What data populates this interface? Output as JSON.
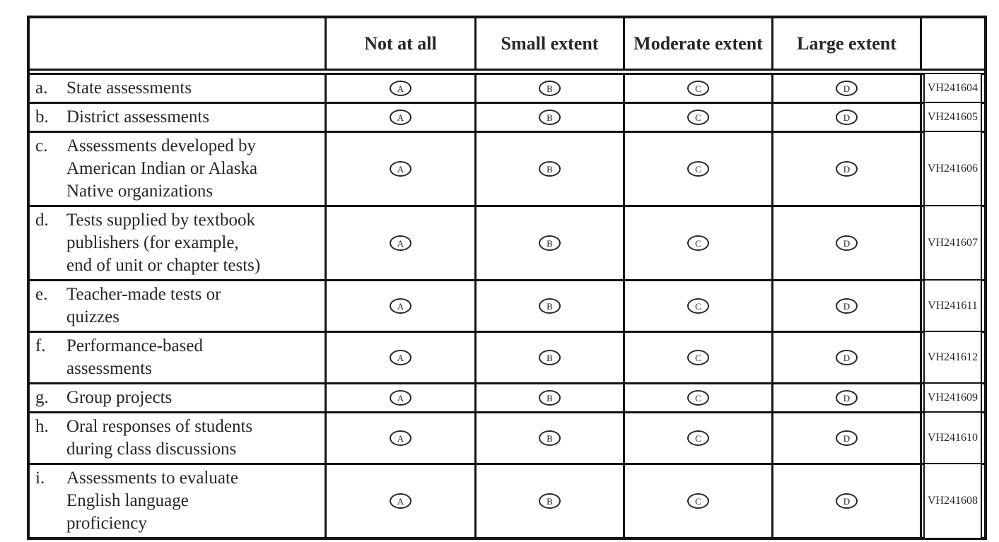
{
  "table": {
    "header": {
      "row_label_column": "",
      "options": [
        "Not at all",
        "Small extent",
        "Moderate extent",
        "Large extent"
      ],
      "code_column": ""
    },
    "bubble_letters": [
      "A",
      "B",
      "C",
      "D"
    ],
    "rows": [
      {
        "letter": "a.",
        "text": "State assessments",
        "code": "VH241604"
      },
      {
        "letter": "b.",
        "text": "District assessments",
        "code": "VH241605"
      },
      {
        "letter": "c.",
        "text": "Assessments developed by\nAmerican Indian or Alaska\nNative organizations",
        "code": "VH241606"
      },
      {
        "letter": "d.",
        "text": "Tests supplied by textbook\npublishers (for example,\nend of unit or chapter tests)",
        "code": "VH241607"
      },
      {
        "letter": "e.",
        "text": "Teacher-made tests or\nquizzes",
        "code": "VH241611"
      },
      {
        "letter": "f.",
        "text": "Performance-based\nassessments",
        "code": "VH241612"
      },
      {
        "letter": "g.",
        "text": "Group projects",
        "code": "VH241609"
      },
      {
        "letter": "h.",
        "text": "Oral responses of students\nduring class discussions",
        "code": "VH241610"
      },
      {
        "letter": "i.",
        "text": "Assessments to evaluate\nEnglish language\nproficiency",
        "code": "VH241608"
      }
    ],
    "colors": {
      "line": "#141414",
      "text": "#26262b",
      "background": "#ffffff"
    }
  }
}
